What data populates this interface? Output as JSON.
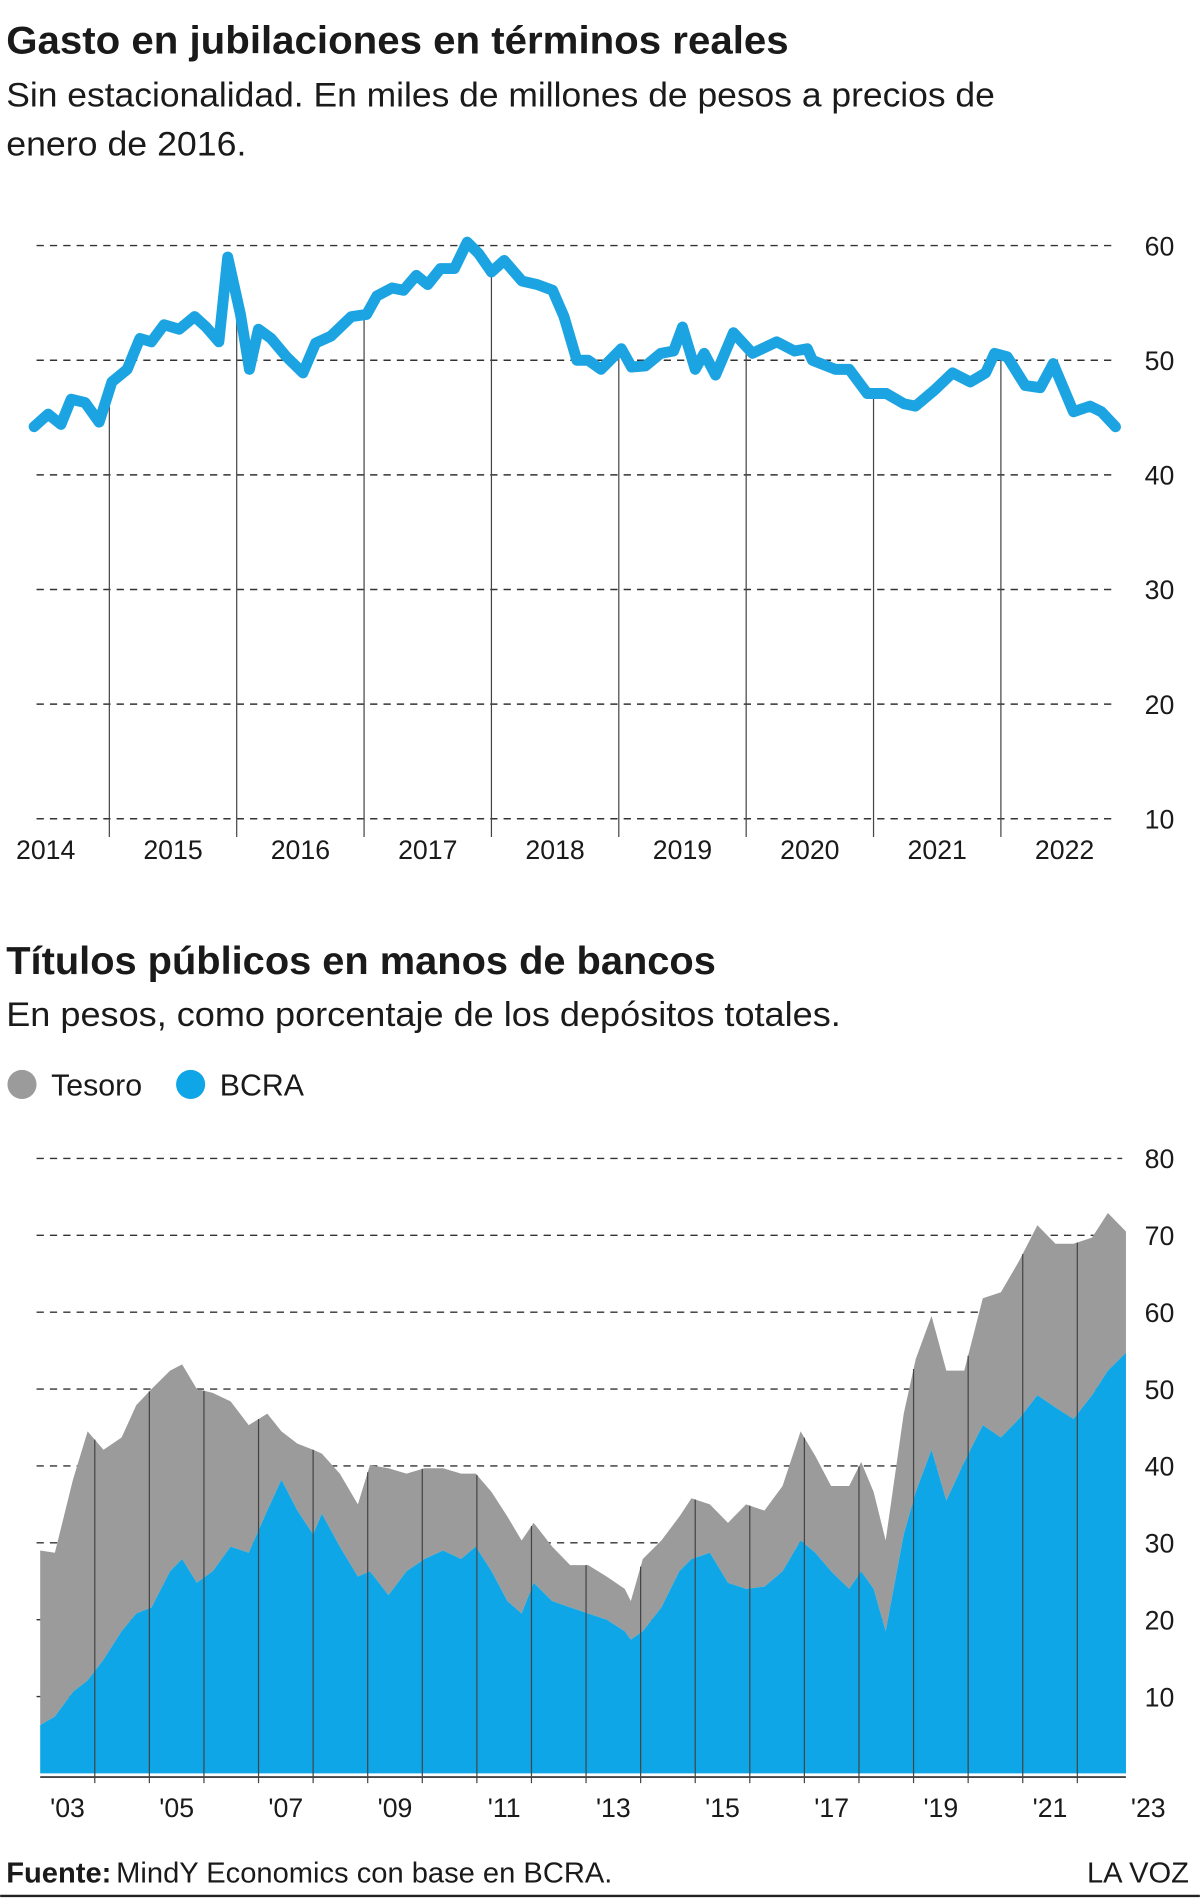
{
  "chart_data": [
    {
      "type": "line",
      "title": "Gasto en jubilaciones en términos reales",
      "subtitle": [
        "Sin estacionalidad. En miles de millones de pesos a precios de",
        "enero de 2016."
      ],
      "x": [
        2014.41,
        2014.52,
        2014.62,
        2014.7,
        2014.81,
        2014.92,
        2015.02,
        2015.14,
        2015.24,
        2015.33,
        2015.43,
        2015.55,
        2015.67,
        2015.76,
        2015.86,
        2015.93,
        2016.03,
        2016.1,
        2016.17,
        2016.27,
        2016.39,
        2016.52,
        2016.62,
        2016.74,
        2016.9,
        2017.02,
        2017.1,
        2017.22,
        2017.31,
        2017.41,
        2017.5,
        2017.6,
        2017.71,
        2017.81,
        2017.9,
        2018.0,
        2018.1,
        2018.24,
        2018.36,
        2018.48,
        2018.57,
        2018.67,
        2018.76,
        2018.86,
        2019.02,
        2019.1,
        2019.21,
        2019.33,
        2019.43,
        2019.5,
        2019.6,
        2019.67,
        2019.76,
        2019.9,
        2020.05,
        2020.24,
        2020.38,
        2020.48,
        2020.52,
        2020.7,
        2020.81,
        2020.95,
        2021.1,
        2021.24,
        2021.33,
        2021.48,
        2021.62,
        2021.76,
        2021.88,
        2021.95,
        2022.05,
        2022.19,
        2022.31,
        2022.41,
        2022.57,
        2022.7,
        2022.79,
        2022.9
      ],
      "values": [
        44.2,
        45.3,
        44.4,
        46.6,
        46.3,
        44.6,
        48.1,
        49.2,
        51.9,
        51.6,
        53.1,
        52.7,
        53.8,
        52.9,
        51.6,
        59.0,
        54.0,
        49.2,
        52.7,
        51.9,
        50.3,
        48.9,
        51.5,
        52.1,
        53.8,
        54.0,
        55.6,
        56.3,
        56.1,
        57.4,
        56.6,
        58.0,
        58.0,
        60.3,
        59.3,
        57.7,
        58.7,
        56.9,
        56.6,
        56.1,
        53.8,
        50.0,
        50.0,
        49.2,
        51.0,
        49.4,
        49.5,
        50.6,
        50.8,
        52.9,
        49.2,
        50.6,
        48.7,
        52.4,
        50.6,
        51.6,
        50.8,
        51.0,
        50.0,
        49.2,
        49.2,
        47.1,
        47.1,
        46.2,
        46.0,
        47.4,
        48.9,
        48.1,
        48.9,
        50.6,
        50.3,
        47.8,
        47.6,
        49.7,
        45.5,
        46.0,
        45.5,
        44.2
      ],
      "color": "#1ca4e2",
      "xlim": [
        2014.4,
        2023.0
      ],
      "ylim": [
        10,
        61
      ],
      "yticks": [
        10,
        20,
        30,
        40,
        50,
        60
      ],
      "xticks": [
        2015,
        2016,
        2017,
        2018,
        2019,
        2020,
        2021,
        2022
      ],
      "xtick_labels": [
        {
          "value": 2014.5,
          "label": "2014"
        },
        {
          "value": 2015.5,
          "label": "2015"
        },
        {
          "value": 2016.5,
          "label": "2016"
        },
        {
          "value": 2017.5,
          "label": "2017"
        },
        {
          "value": 2018.5,
          "label": "2018"
        },
        {
          "value": 2019.5,
          "label": "2019"
        },
        {
          "value": 2020.5,
          "label": "2020"
        },
        {
          "value": 2021.5,
          "label": "2021"
        },
        {
          "value": 2022.5,
          "label": "2022"
        }
      ],
      "grid": true
    },
    {
      "type": "stacked_area",
      "title": "Títulos públicos en manos de bancos",
      "subtitle": [
        "En pesos, como porcentaje de los depósitos totales."
      ],
      "x": [
        2003.0,
        2003.27,
        2003.6,
        2003.87,
        2004.16,
        2004.49,
        2004.76,
        2005.04,
        2005.38,
        2005.6,
        2005.87,
        2006.16,
        2006.49,
        2006.82,
        2007.16,
        2007.42,
        2007.71,
        2008.0,
        2008.16,
        2008.49,
        2008.82,
        2009.04,
        2009.38,
        2009.71,
        2010.04,
        2010.38,
        2010.71,
        2010.98,
        2011.27,
        2011.56,
        2011.82,
        2012.04,
        2012.38,
        2012.71,
        2013.04,
        2013.38,
        2013.71,
        2013.82,
        2014.04,
        2014.38,
        2014.71,
        2014.93,
        2015.27,
        2015.6,
        2015.93,
        2016.27,
        2016.6,
        2016.93,
        2017.2,
        2017.49,
        2017.82,
        2018.04,
        2018.27,
        2018.49,
        2018.82,
        2019.04,
        2019.33,
        2019.6,
        2019.93,
        2020.27,
        2020.6,
        2020.93,
        2021.27,
        2021.6,
        2021.93,
        2022.27,
        2022.56,
        2022.89
      ],
      "series": [
        {
          "name": "Tesoro",
          "color": "#9b9b9b",
          "values": [
            22.7,
            21.3,
            27.6,
            32.4,
            27.3,
            25.2,
            27.1,
            28.4,
            26.1,
            25.3,
            25.2,
            23.2,
            18.9,
            16.6,
            12.6,
            6.3,
            8.7,
            11.0,
            7.8,
            9.5,
            9.4,
            13.8,
            16.5,
            12.7,
            11.8,
            10.7,
            11.1,
            9.5,
            10.3,
            11.0,
            9.5,
            7.8,
            7.1,
            5.5,
            6.3,
            5.6,
            5.5,
            5.0,
            9.4,
            8.7,
            7.1,
            7.9,
            6.3,
            7.8,
            11.0,
            9.9,
            11.1,
            14.2,
            12.6,
            11.1,
            13.4,
            14.2,
            12.6,
            11.8,
            15.7,
            17.3,
            17.4,
            16.9,
            11.9,
            16.5,
            18.9,
            20.5,
            22.1,
            21.3,
            22.8,
            20.5,
            20.5,
            15.8
          ]
        },
        {
          "name": "BCRA",
          "color": "#0ea6e6",
          "values": [
            6.3,
            7.4,
            10.6,
            12.1,
            14.8,
            18.5,
            20.8,
            21.6,
            26.3,
            27.9,
            24.8,
            26.3,
            29.5,
            28.7,
            34.2,
            38.2,
            34.2,
            31.1,
            33.8,
            29.5,
            25.6,
            26.3,
            23.2,
            26.3,
            27.9,
            29.0,
            27.9,
            29.5,
            26.3,
            22.4,
            20.8,
            24.8,
            22.4,
            21.6,
            20.8,
            20.0,
            18.5,
            17.4,
            18.5,
            21.6,
            26.3,
            27.9,
            28.7,
            24.8,
            24.0,
            24.3,
            26.3,
            30.3,
            28.7,
            26.3,
            24.0,
            26.3,
            24.0,
            18.5,
            31.1,
            36.6,
            42.1,
            35.5,
            40.5,
            45.3,
            43.7,
            46.1,
            49.2,
            47.6,
            46.1,
            49.2,
            52.4,
            54.7
          ]
        }
      ],
      "xlim": [
        2003,
        2023.4
      ],
      "ylim": [
        0,
        80
      ],
      "yticks": [
        10,
        20,
        30,
        40,
        50,
        60,
        70,
        80
      ],
      "xticks": [
        2004,
        2005,
        2006,
        2007,
        2008,
        2009,
        2010,
        2011,
        2012,
        2013,
        2014,
        2015,
        2016,
        2017,
        2018,
        2019,
        2020,
        2021,
        2022
      ],
      "xtick_labels": [
        {
          "value": 2003.5,
          "label": "'03"
        },
        {
          "value": 2005.5,
          "label": "'05"
        },
        {
          "value": 2007.5,
          "label": "'07"
        },
        {
          "value": 2009.5,
          "label": "'09"
        },
        {
          "value": 2011.5,
          "label": "'11"
        },
        {
          "value": 2013.5,
          "label": "'13"
        },
        {
          "value": 2015.5,
          "label": "'15"
        },
        {
          "value": 2017.5,
          "label": "'17"
        },
        {
          "value": 2019.5,
          "label": "'19"
        },
        {
          "value": 2021.5,
          "label": "'21"
        },
        {
          "value": 2023.3,
          "label": "'23"
        }
      ],
      "grid": true
    }
  ],
  "footer": {
    "source_label": "Fuente:",
    "source_text": "MindY Economics con base en BCRA.",
    "brand": "LA VOZ"
  }
}
